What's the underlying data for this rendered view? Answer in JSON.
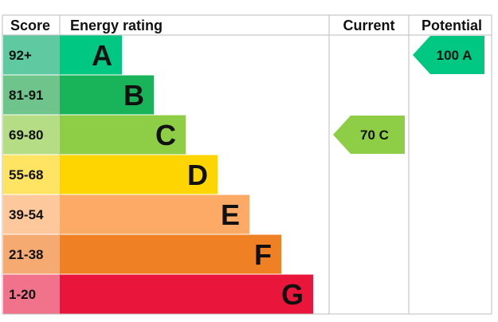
{
  "chart_data": {
    "type": "bar",
    "headers": {
      "score": "Score",
      "energy_rating": "Energy rating",
      "current": "Current",
      "potential": "Potential"
    },
    "bands": [
      {
        "score": "92+",
        "letter": "A",
        "bar_color": "#00c781",
        "score_color": "#5fc9a2"
      },
      {
        "score": "81-91",
        "letter": "B",
        "bar_color": "#19b459",
        "score_color": "#6ec48a"
      },
      {
        "score": "69-80",
        "letter": "C",
        "bar_color": "#8dce46",
        "score_color": "#b4dd86"
      },
      {
        "score": "55-68",
        "letter": "D",
        "bar_color": "#ffd500",
        "score_color": "#ffe362"
      },
      {
        "score": "39-54",
        "letter": "E",
        "bar_color": "#fcaa65",
        "score_color": "#fdc89b"
      },
      {
        "score": "21-38",
        "letter": "F",
        "bar_color": "#ef8023",
        "score_color": "#f5aa72"
      },
      {
        "score": "1-20",
        "letter": "G",
        "bar_color": "#e9153b",
        "score_color": "#f0728b"
      }
    ],
    "current": {
      "value": 70,
      "letter": "C",
      "label": "70 C",
      "color": "#8dce46"
    },
    "potential": {
      "value": 100,
      "letter": "A",
      "label": "100 A",
      "color": "#00c781"
    }
  }
}
